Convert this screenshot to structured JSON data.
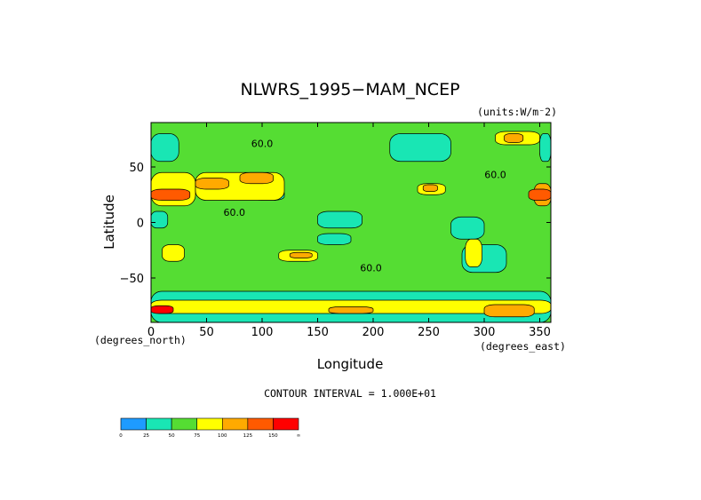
{
  "chart_data": {
    "type": "heatmap",
    "title": "NLWRS_1995−MAM_NCEP",
    "units_label": "(units:W/m⁻2)",
    "xlabel": "Longitude",
    "ylabel": "Latitude",
    "x_unit_label": "(degrees_east)",
    "y_unit_label": "(degrees_north)",
    "xlim": [
      0,
      360
    ],
    "ylim": [
      -90,
      90
    ],
    "x_ticks": [
      0,
      50,
      100,
      150,
      200,
      250,
      300,
      350
    ],
    "y_ticks": [
      -50,
      0,
      50
    ],
    "x_tick_labels": [
      "0",
      "50",
      "100",
      "150",
      "200",
      "250",
      "300",
      "350"
    ],
    "y_tick_labels": [
      "−50",
      "0",
      "50"
    ],
    "contour_interval_text": "CONTOUR INTERVAL = 1.000E+01",
    "contour_labels": [
      {
        "text": "60.0",
        "lon": 100,
        "lat": 68
      },
      {
        "text": "60.0",
        "lon": 75,
        "lat": 6
      },
      {
        "text": "60.0",
        "lon": 310,
        "lat": 40
      },
      {
        "text": "60.0",
        "lon": 198,
        "lat": -44
      }
    ],
    "colorbar": {
      "levels": [
        "0",
        "25",
        "50",
        "75",
        "100",
        "125",
        "150",
        "∞"
      ],
      "colors": [
        "#1e9bff",
        "#19e6b4",
        "#55dd33",
        "#ffff00",
        "#ffaa00",
        "#ff5a00",
        "#ff0000"
      ]
    },
    "background_class": 2,
    "regions": [
      {
        "lon": [
          0,
          360
        ],
        "lat": [
          -90,
          90
        ],
        "level": 50
      },
      {
        "lon": [
          215,
          270
        ],
        "lat": [
          55,
          80
        ],
        "level": 25
      },
      {
        "lon": [
          350,
          360
        ],
        "lat": [
          55,
          80
        ],
        "level": 25
      },
      {
        "lon": [
          0,
          25
        ],
        "lat": [
          55,
          80
        ],
        "level": 25
      },
      {
        "lon": [
          150,
          190
        ],
        "lat": [
          -5,
          10
        ],
        "level": 25
      },
      {
        "lon": [
          90,
          120
        ],
        "lat": [
          20,
          30
        ],
        "level": 25
      },
      {
        "lon": [
          150,
          180
        ],
        "lat": [
          -20,
          -10
        ],
        "level": 25
      },
      {
        "lon": [
          270,
          300
        ],
        "lat": [
          -15,
          5
        ],
        "level": 25
      },
      {
        "lon": [
          280,
          320
        ],
        "lat": [
          -45,
          -20
        ],
        "level": 25
      },
      {
        "lon": [
          0,
          15
        ],
        "lat": [
          -5,
          10
        ],
        "level": 25
      },
      {
        "lon": [
          0,
          40
        ],
        "lat": [
          15,
          45
        ],
        "level": 75
      },
      {
        "lon": [
          40,
          120
        ],
        "lat": [
          20,
          45
        ],
        "level": 75
      },
      {
        "lon": [
          0,
          35
        ],
        "lat": [
          20,
          30
        ],
        "level": 125
      },
      {
        "lon": [
          40,
          70
        ],
        "lat": [
          30,
          40
        ],
        "level": 100
      },
      {
        "lon": [
          80,
          110
        ],
        "lat": [
          35,
          45
        ],
        "level": 100
      },
      {
        "lon": [
          10,
          30
        ],
        "lat": [
          -35,
          -20
        ],
        "level": 75
      },
      {
        "lon": [
          115,
          150
        ],
        "lat": [
          -35,
          -25
        ],
        "level": 75
      },
      {
        "lon": [
          125,
          145
        ],
        "lat": [
          -32,
          -27
        ],
        "level": 100
      },
      {
        "lon": [
          240,
          265
        ],
        "lat": [
          25,
          35
        ],
        "level": 75
      },
      {
        "lon": [
          245,
          258
        ],
        "lat": [
          28,
          34
        ],
        "level": 100
      },
      {
        "lon": [
          283,
          298
        ],
        "lat": [
          -40,
          -15
        ],
        "level": 75
      },
      {
        "lon": [
          345,
          360
        ],
        "lat": [
          15,
          35
        ],
        "level": 100
      },
      {
        "lon": [
          340,
          360
        ],
        "lat": [
          20,
          30
        ],
        "level": 125
      },
      {
        "lon": [
          310,
          350
        ],
        "lat": [
          70,
          82
        ],
        "level": 75
      },
      {
        "lon": [
          318,
          335
        ],
        "lat": [
          72,
          80
        ],
        "level": 100
      },
      {
        "lon": [
          0,
          360
        ],
        "lat": [
          -90,
          -62
        ],
        "level": 25
      },
      {
        "lon": [
          0,
          360
        ],
        "lat": [
          -82,
          -70
        ],
        "level": 75
      },
      {
        "lon": [
          0,
          20
        ],
        "lat": [
          -82,
          -75
        ],
        "level": 150
      },
      {
        "lon": [
          300,
          345
        ],
        "lat": [
          -85,
          -74
        ],
        "level": 100
      },
      {
        "lon": [
          160,
          200
        ],
        "lat": [
          -82,
          -76
        ],
        "level": 100
      }
    ]
  }
}
